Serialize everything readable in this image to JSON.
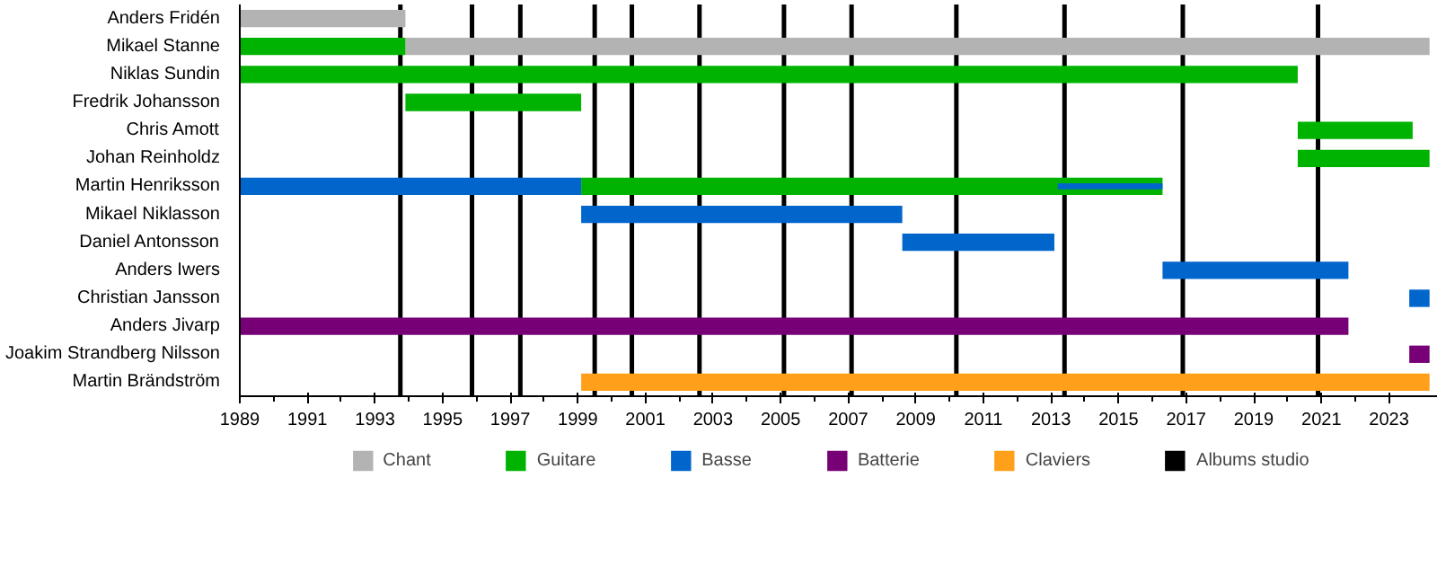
{
  "chart_data": {
    "type": "bar",
    "orientation": "horizontal",
    "categories": [
      "Anders Fridén",
      "Mikael Stanne",
      "Niklas Sundin",
      "Fredrik Johansson",
      "Chris Amott",
      "Johan Reinholdz",
      "Martin Henriksson",
      "Mikael Niklasson",
      "Daniel Antonsson",
      "Anders Iwers",
      "Christian Jansson",
      "Anders Jivarp",
      "Joakim Strandberg Nilsson",
      "Martin Brändström"
    ],
    "series": [
      {
        "name": "Chant",
        "color": "#b3b3b3",
        "base": [
          1989,
          1993.9,
          null,
          null,
          null,
          null,
          null,
          null,
          null,
          null,
          null,
          null,
          null,
          null
        ],
        "values": [
          4.9,
          30.3,
          null,
          null,
          null,
          null,
          null,
          null,
          null,
          null,
          null,
          null,
          null,
          null
        ]
      },
      {
        "name": "Guitare",
        "color": "#00b300",
        "base": [
          null,
          1989,
          1989,
          1993.9,
          2020.3,
          2020.3,
          1999.1,
          null,
          null,
          null,
          null,
          null,
          null,
          null
        ],
        "values": [
          null,
          4.9,
          31.3,
          5.2,
          3.4,
          3.9,
          17.2,
          null,
          null,
          null,
          null,
          null,
          null,
          null
        ]
      },
      {
        "name": "Basse",
        "color": "#0066cc",
        "base": [
          null,
          null,
          null,
          null,
          null,
          null,
          1989,
          1999.1,
          2008.6,
          2016.3,
          2023.6,
          null,
          null,
          null
        ],
        "values": [
          null,
          null,
          null,
          null,
          null,
          null,
          10.1,
          9.5,
          4.5,
          5.5,
          0.6,
          null,
          null,
          null
        ]
      },
      {
        "color": "#0066cc",
        "base": [
          null,
          null,
          null,
          null,
          null,
          null,
          2013.2,
          null,
          null,
          null,
          null,
          null,
          null,
          null
        ],
        "values": [
          null,
          null,
          null,
          null,
          null,
          null,
          3.1,
          null,
          null,
          null,
          null,
          null,
          null,
          null
        ]
      },
      {
        "name": "Batterie",
        "color": "#770077",
        "base": [
          null,
          null,
          null,
          null,
          null,
          null,
          null,
          null,
          null,
          null,
          null,
          1989,
          2023.6,
          null
        ],
        "values": [
          null,
          null,
          null,
          null,
          null,
          null,
          null,
          null,
          null,
          null,
          null,
          32.8,
          0.6,
          null
        ]
      },
      {
        "name": "Claviers",
        "color": "#ff9f1a",
        "base": [
          null,
          null,
          null,
          null,
          null,
          null,
          null,
          null,
          null,
          null,
          null,
          null,
          null,
          1999.1
        ],
        "values": [
          null,
          null,
          null,
          null,
          null,
          null,
          null,
          null,
          null,
          null,
          null,
          null,
          null,
          25.1
        ]
      }
    ],
    "xlim": [
      1989,
      2024.5
    ],
    "xticks": [
      1989,
      1991,
      1993,
      1995,
      1997,
      1999,
      2001,
      2003,
      2005,
      2007,
      2009,
      2011,
      2013,
      2015,
      2017,
      2019,
      2021,
      2023
    ],
    "ref_lines": [
      {
        "axis": "x",
        "value": 1993.75,
        "label": "Albums studio",
        "color": "#000000"
      },
      {
        "axis": "x",
        "value": 1995.87,
        "color": "#000000"
      },
      {
        "axis": "x",
        "value": 1997.3,
        "color": "#000000"
      },
      {
        "axis": "x",
        "value": 1999.5,
        "color": "#000000"
      },
      {
        "axis": "x",
        "value": 2000.6,
        "color": "#000000"
      },
      {
        "axis": "x",
        "value": 2002.6,
        "color": "#000000"
      },
      {
        "axis": "x",
        "value": 2005.1,
        "color": "#000000"
      },
      {
        "axis": "x",
        "value": 2007.1,
        "color": "#000000"
      },
      {
        "axis": "x",
        "value": 2010.2,
        "color": "#000000"
      },
      {
        "axis": "x",
        "value": 2013.4,
        "color": "#000000"
      },
      {
        "axis": "x",
        "value": 2016.9,
        "color": "#000000"
      },
      {
        "axis": "x",
        "value": 2020.9,
        "color": "#000000"
      }
    ],
    "grid": false,
    "legend": "bottom"
  }
}
